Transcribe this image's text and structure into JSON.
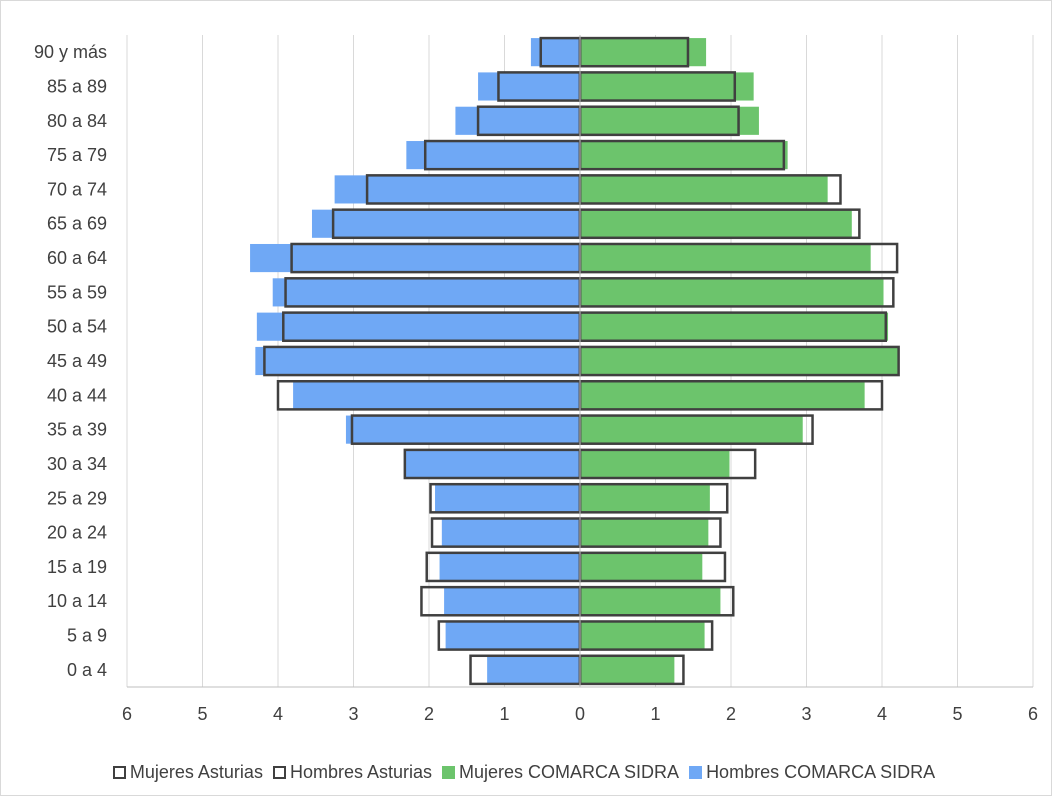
{
  "chart_data": {
    "type": "bar",
    "orientation": "horizontal",
    "categories": [
      "0 a 4",
      "5 a 9",
      "10 a 14",
      "15 a 19",
      "20 a 24",
      "25 a 29",
      "30 a 34",
      "35 a 39",
      "40 a 44",
      "45 a 49",
      "50 a 54",
      "55 a 59",
      "60 a 64",
      "65 a 69",
      "70 a 74",
      "75 a 79",
      "80 a 84",
      "85 a 89",
      "90 y más"
    ],
    "xlim": [
      -6,
      6
    ],
    "xticks": [
      -6,
      -5,
      -4,
      -3,
      -2,
      -1,
      0,
      1,
      2,
      3,
      4,
      5,
      6
    ],
    "xtick_labels": [
      "6",
      "5",
      "4",
      "3",
      "2",
      "1",
      "0",
      "1",
      "2",
      "3",
      "4",
      "5",
      "6"
    ],
    "grid": "vertical",
    "legend_position": "bottom",
    "series": [
      {
        "name": "Mujeres Asturias",
        "style": "outline",
        "color": "#404040",
        "values": [
          1.37,
          1.75,
          2.03,
          1.92,
          1.86,
          1.95,
          2.32,
          3.08,
          4.0,
          4.22,
          4.05,
          4.15,
          4.2,
          3.7,
          3.45,
          2.7,
          2.1,
          2.05,
          1.43
        ]
      },
      {
        "name": "Hombres Asturias",
        "style": "outline",
        "color": "#404040",
        "values": [
          -1.45,
          -1.87,
          -2.1,
          -2.03,
          -1.96,
          -1.98,
          -2.32,
          -3.02,
          -4.0,
          -4.18,
          -3.93,
          -3.9,
          -3.82,
          -3.27,
          -2.82,
          -2.05,
          -1.35,
          -1.08,
          -0.52
        ]
      },
      {
        "name": "Mujeres COMARCA SIDRA",
        "style": "fill",
        "color": "#6cc46c",
        "values": [
          1.25,
          1.65,
          1.86,
          1.62,
          1.7,
          1.72,
          1.98,
          2.95,
          3.77,
          4.22,
          4.08,
          4.02,
          3.85,
          3.6,
          3.28,
          2.75,
          2.37,
          2.3,
          1.67
        ]
      },
      {
        "name": "Hombres COMARCA SIDRA",
        "style": "fill",
        "color": "#6fa8f5",
        "values": [
          -1.23,
          -1.78,
          -1.8,
          -1.86,
          -1.83,
          -1.92,
          -2.32,
          -3.1,
          -3.8,
          -4.3,
          -4.28,
          -4.07,
          -4.37,
          -3.55,
          -3.25,
          -2.3,
          -1.65,
          -1.35,
          -0.65
        ]
      }
    ]
  },
  "legend": {
    "items": [
      {
        "label": "Mujeres Asturias",
        "fill": "#ffffff",
        "stroke": "#404040"
      },
      {
        "label": "Hombres Asturias",
        "fill": "#ffffff",
        "stroke": "#404040"
      },
      {
        "label": "Mujeres COMARCA SIDRA",
        "fill": "#6cc46c",
        "stroke": "#6cc46c"
      },
      {
        "label": "Hombres COMARCA SIDRA",
        "fill": "#6fa8f5",
        "stroke": "#6fa8f5"
      }
    ]
  }
}
